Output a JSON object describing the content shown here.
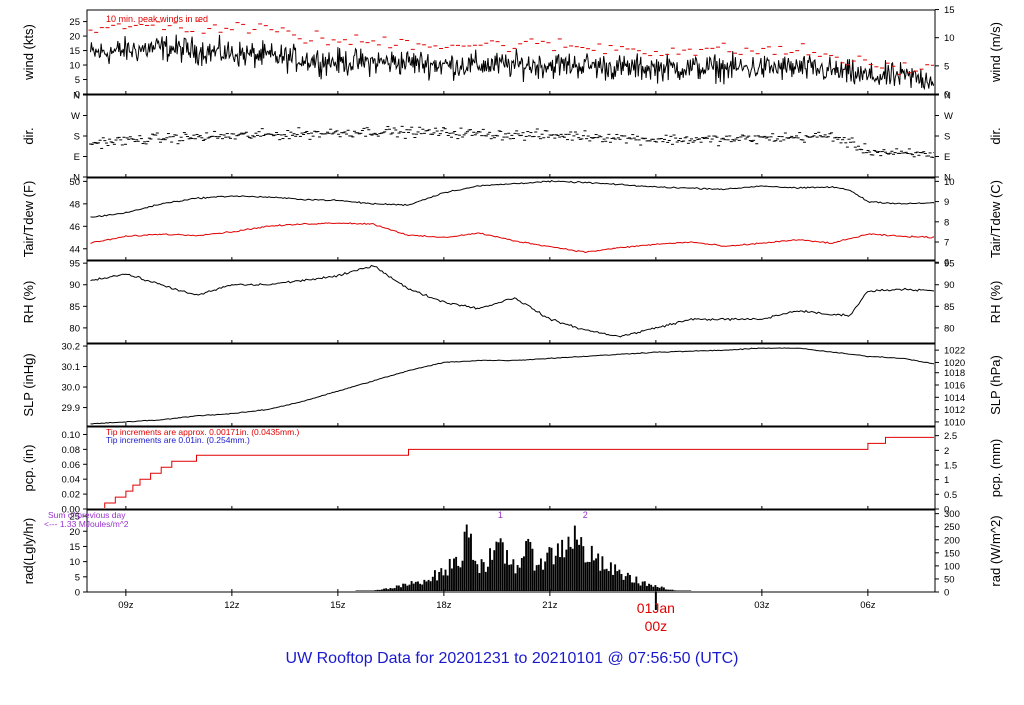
{
  "colors": {
    "frame": "#000000",
    "primary_series": "#000000",
    "secondary_series": "#e00000",
    "note_blue": "#1a1acc",
    "note_purple": "#9933cc",
    "title_blue": "#1a1acc",
    "midnight_red": "#e00000"
  },
  "title": "UW Rooftop Data for 20201231  to  20210101 @ 07:56:50  (UTC)",
  "x_axis": {
    "tick_labels": [
      "09z",
      "12z",
      "15z",
      "18z",
      "21z",
      "03z",
      "06z"
    ],
    "tick_hours": [
      9,
      12,
      15,
      18,
      21,
      27,
      30
    ],
    "midnight": {
      "hour": 24,
      "date_label": "01Jan",
      "hour_label": "00z"
    },
    "range_hours": [
      7.9,
      31.9
    ]
  },
  "chart_data": [
    {
      "type": "line",
      "id": "wind",
      "ylabel": "wind (kts)",
      "ylabel_right": "wind (m/s)",
      "ylim": [
        0,
        29
      ],
      "yticks": [
        0,
        5,
        10,
        15,
        20,
        25
      ],
      "yticks_right_labels": [
        "0",
        "5",
        "10",
        "15"
      ],
      "yticks_right_values_kts": [
        0,
        9.72,
        19.44,
        29.16
      ],
      "annotation": "10 min. peak winds in red",
      "series": [
        {
          "name": "wind speed",
          "color": "#000000",
          "x": [
            8,
            9,
            10,
            11,
            12,
            13,
            14,
            15,
            16,
            17,
            18,
            19,
            20,
            21,
            22,
            23,
            24,
            25,
            26,
            27,
            28,
            29,
            30,
            31,
            32
          ],
          "y": [
            14,
            15,
            16,
            15,
            14,
            13,
            12,
            11,
            11,
            11,
            10,
            10,
            10,
            10,
            10,
            9,
            9,
            9,
            9,
            9,
            9,
            8,
            6,
            6,
            5
          ]
        },
        {
          "name": "10 min. peak winds",
          "color": "#e00000",
          "x": [
            8,
            9,
            10,
            11,
            12,
            13,
            14,
            15,
            16,
            17,
            18,
            19,
            20,
            21,
            22,
            23,
            24,
            25,
            26,
            27,
            28,
            29,
            30,
            31,
            32
          ],
          "y": [
            21,
            23,
            24,
            23,
            23,
            22,
            20,
            18,
            18,
            18,
            17,
            17,
            17,
            17,
            16,
            16,
            15,
            15,
            15,
            15,
            15,
            13,
            10,
            9,
            8
          ]
        }
      ]
    },
    {
      "type": "scatter",
      "id": "dir",
      "ylabel": "dir.",
      "ylabel_right": "dir.",
      "ylim": [
        0,
        360
      ],
      "yticks": [
        0,
        90,
        180,
        270,
        360
      ],
      "ytick_labels": [
        "N",
        "E",
        "S",
        "W",
        "N"
      ],
      "series": [
        {
          "name": "direction",
          "color": "#000000",
          "x": [
            8,
            10,
            12,
            14,
            16,
            18,
            20,
            22,
            24,
            26,
            28,
            29,
            30,
            31,
            32
          ],
          "y": [
            150,
            170,
            180,
            190,
            200,
            195,
            185,
            180,
            165,
            165,
            175,
            180,
            115,
            100,
            100
          ]
        }
      ]
    },
    {
      "type": "line",
      "id": "temp",
      "ylabel": "Tair/Tdew (F)",
      "ylabel_right": "Tair/Tdew (C)",
      "ylim": [
        43,
        50.3
      ],
      "yticks": [
        44,
        46,
        48,
        50
      ],
      "yticks_right_labels": [
        "6",
        "7",
        "8",
        "9",
        "10"
      ],
      "yticks_right_values_f": [
        42.8,
        44.6,
        46.4,
        48.2,
        50.0
      ],
      "series": [
        {
          "name": "Tair",
          "color": "#000000",
          "x": [
            8,
            9,
            10,
            11,
            12,
            13,
            14,
            15,
            16,
            17,
            18,
            19,
            20,
            21,
            22,
            23,
            24,
            25,
            26,
            27,
            28,
            29,
            29.5,
            30,
            31,
            32
          ],
          "y": [
            46.8,
            47.2,
            48.0,
            48.5,
            48.7,
            48.6,
            48.4,
            48.3,
            48.0,
            47.9,
            49.0,
            49.6,
            49.8,
            50.0,
            49.9,
            49.7,
            49.5,
            49.4,
            49.3,
            49.6,
            49.4,
            49.5,
            49.2,
            48.2,
            48.0,
            48.1
          ]
        },
        {
          "name": "Tdew",
          "color": "#e00000",
          "x": [
            8,
            9,
            10,
            11,
            12,
            13,
            14,
            15,
            16,
            17,
            18,
            19,
            20,
            21,
            22,
            23,
            24,
            25,
            26,
            27,
            28,
            29,
            30,
            31,
            32
          ],
          "y": [
            44.5,
            45.1,
            45.3,
            45.2,
            45.5,
            46.0,
            46.2,
            46.3,
            46.2,
            45.2,
            45.0,
            45.4,
            44.7,
            44.2,
            43.7,
            44.1,
            44.4,
            44.6,
            44.2,
            44.5,
            44.8,
            44.5,
            45.3,
            45.1,
            45.0
          ]
        }
      ]
    },
    {
      "type": "line",
      "id": "rh",
      "ylabel": "RH (%)",
      "ylabel_right": "RH (%)",
      "ylim": [
        76.5,
        95.5
      ],
      "yticks": [
        80,
        85,
        90,
        95
      ],
      "series": [
        {
          "name": "RH",
          "color": "#000000",
          "x": [
            8,
            9,
            10,
            11,
            12,
            13,
            14,
            15,
            16,
            17,
            18,
            19,
            20,
            21,
            22,
            23,
            24,
            25,
            26,
            27,
            28,
            29,
            29.5,
            30,
            31,
            32
          ],
          "y": [
            91,
            92.5,
            90,
            87.5,
            90,
            90,
            91,
            92,
            94.5,
            89,
            86,
            84.5,
            87,
            82,
            79.5,
            78,
            80,
            82,
            82,
            82,
            84,
            83,
            83,
            88.5,
            89,
            88.5
          ]
        }
      ]
    },
    {
      "type": "line",
      "id": "slp",
      "ylabel": "SLP (inHg)",
      "ylabel_right": "SLP (hPa)",
      "ylim": [
        29.81,
        30.21
      ],
      "yticks": [
        29.9,
        30.0,
        30.1,
        30.2
      ],
      "ytick_labels": [
        "29.9",
        "30.0",
        "30.1",
        "30.2"
      ],
      "yticks_right_labels": [
        "1010",
        "1012",
        "1014",
        "1016",
        "1018",
        "1020",
        "1022"
      ],
      "yticks_right_values_inhg": [
        29.83,
        29.89,
        29.95,
        30.01,
        30.07,
        30.12,
        30.18
      ],
      "series": [
        {
          "name": "SLP",
          "color": "#000000",
          "x": [
            8,
            9,
            10,
            11,
            12,
            13,
            14,
            15,
            16,
            17,
            18,
            19,
            20,
            21,
            22,
            23,
            24,
            25,
            26,
            27,
            28,
            29,
            30,
            31,
            32
          ],
          "y": [
            29.82,
            29.83,
            29.84,
            29.86,
            29.87,
            29.89,
            29.93,
            29.98,
            30.03,
            30.08,
            30.12,
            30.13,
            30.13,
            30.14,
            30.15,
            30.16,
            30.17,
            30.175,
            30.18,
            30.19,
            30.19,
            30.17,
            30.15,
            30.14,
            30.11
          ]
        }
      ]
    },
    {
      "type": "area",
      "id": "pcp",
      "ylabel": "pcp. (in)",
      "ylabel_right": "pcp. (mm)",
      "ylim": [
        0,
        0.11
      ],
      "yticks": [
        0,
        0.02,
        0.04,
        0.06,
        0.08,
        0.1
      ],
      "ytick_labels": [
        "0.00",
        "0.02",
        "0.04",
        "0.06",
        "0.08",
        "0.10"
      ],
      "yticks_right_labels": [
        "0",
        "0.5",
        "1",
        "1.5",
        "2",
        "2.5"
      ],
      "yticks_right_values_in": [
        0,
        0.0197,
        0.0394,
        0.0591,
        0.0787,
        0.0984
      ],
      "annotations": [
        {
          "text": "Tip increments are approx. 0.00171in. (0.0435mm.)",
          "color": "#e00000"
        },
        {
          "text": "Tip increments are 0.01in. (0.254mm.)",
          "color": "#1a1acc"
        }
      ],
      "series": [
        {
          "name": "accumulated precipitation",
          "color": "#e00000",
          "x": [
            8.0,
            8.4,
            8.7,
            9.0,
            9.2,
            9.4,
            9.7,
            10.0,
            10.3,
            11.0,
            17.0,
            30.0,
            30.5,
            32.0
          ],
          "y": [
            0.0,
            0.008,
            0.016,
            0.024,
            0.032,
            0.04,
            0.048,
            0.056,
            0.064,
            0.072,
            0.08,
            0.088,
            0.096,
            0.104
          ]
        }
      ]
    },
    {
      "type": "area",
      "id": "rad",
      "ylabel": "rad(Lgly/hr)",
      "ylabel_right": "rad (W/m^2)",
      "ylim": [
        0,
        27
      ],
      "yticks": [
        0,
        5,
        10,
        15,
        20,
        25
      ],
      "yticks_right_labels": [
        "0",
        "50",
        "100",
        "150",
        "200",
        "250",
        "300"
      ],
      "yticks_right_values_lgly": [
        0,
        4.3,
        8.6,
        12.9,
        17.2,
        21.5,
        25.8
      ],
      "annotations": [
        {
          "text": "Sum of previous day",
          "color": "#9933cc"
        },
        {
          "text": "<--- 1.33 MJoules/m^2",
          "color": "#9933cc"
        },
        {
          "text": "1",
          "color": "#9933cc",
          "x": 19.6
        },
        {
          "text": "2",
          "color": "#9933cc",
          "x": 22.0
        }
      ],
      "series": [
        {
          "name": "solar radiation",
          "color": "#000000",
          "x": [
            15.5,
            16.0,
            16.5,
            17.0,
            17.5,
            18.0,
            18.5,
            18.7,
            18.9,
            19.2,
            19.6,
            20.0,
            20.3,
            20.6,
            21.0,
            21.3,
            21.6,
            22.0,
            22.5,
            23.0,
            23.5,
            24.0,
            24.5,
            25.0
          ],
          "y": [
            0,
            0.5,
            1.5,
            3,
            5,
            8,
            14,
            28,
            10,
            12,
            16,
            10,
            16,
            12,
            14,
            17,
            22,
            15,
            10,
            7,
            4,
            2,
            0.5,
            0
          ]
        }
      ]
    }
  ]
}
